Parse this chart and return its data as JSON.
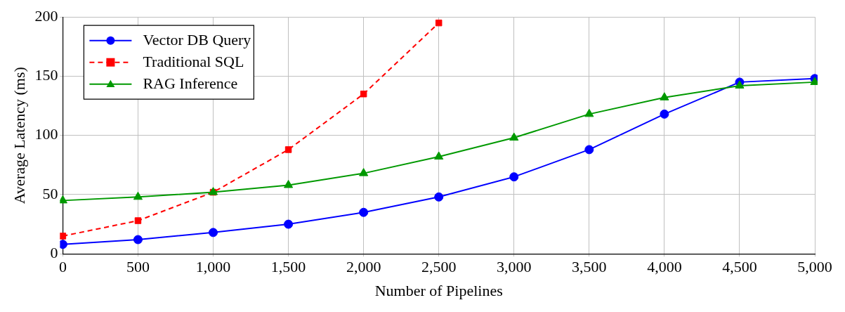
{
  "chart_data": {
    "type": "line",
    "xlabel": "Number of Pipelines",
    "ylabel": "Average Latency (ms)",
    "x": [
      0,
      500,
      1000,
      1500,
      2000,
      2500,
      3000,
      3500,
      4000,
      4500,
      5000
    ],
    "series": [
      {
        "name": "Vector DB Query",
        "color": "#0000ff",
        "marker": "circle",
        "line_style": "solid",
        "values": [
          8,
          12,
          18,
          25,
          35,
          48,
          65,
          88,
          118,
          145,
          148
        ]
      },
      {
        "name": "Traditional SQL",
        "color": "#ff0000",
        "marker": "square",
        "line_style": "dashed",
        "values": [
          15,
          28,
          52,
          88,
          135,
          195,
          null,
          null,
          null,
          null,
          null
        ]
      },
      {
        "name": "RAG Inference",
        "color": "#009900",
        "marker": "triangle",
        "line_style": "solid",
        "values": [
          45,
          48,
          52,
          58,
          68,
          82,
          98,
          118,
          132,
          142,
          145
        ]
      }
    ],
    "xlim": [
      0,
      5000
    ],
    "ylim": [
      0,
      200
    ],
    "xticks": [
      0,
      500,
      {
        "value": 1000,
        "label": "1,000"
      },
      {
        "value": 1500,
        "label": "1,500"
      },
      {
        "value": 2000,
        "label": "2,000"
      },
      {
        "value": 2500,
        "label": "2,500"
      },
      {
        "value": 3000,
        "label": "3,000"
      },
      {
        "value": 3500,
        "label": "3,500"
      },
      {
        "value": 4000,
        "label": "4,000"
      },
      {
        "value": 4500,
        "label": "4,500"
      },
      {
        "value": 5000,
        "label": "5,000"
      }
    ],
    "yticks": [
      0,
      50,
      100,
      150,
      200
    ],
    "grid": true,
    "legend": "top left"
  }
}
